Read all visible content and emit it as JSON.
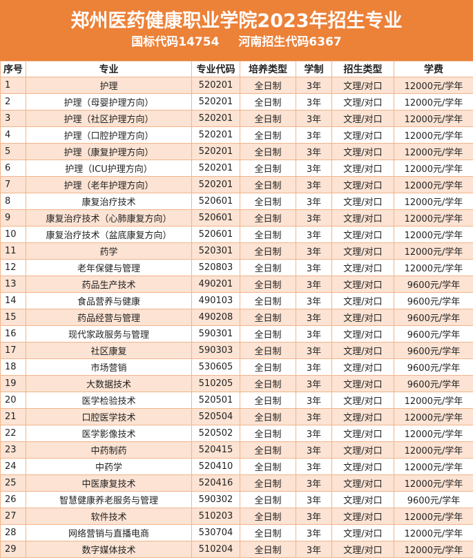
{
  "title": "郑州医药健康职业学院2023年招生专业",
  "codes": {
    "national": "国标代码14754",
    "henan": "河南招生代码6367"
  },
  "headers": [
    "序号",
    "专业",
    "专业代码",
    "培养类型",
    "学制",
    "招生类型",
    "学费"
  ],
  "rows": [
    [
      "1",
      "护理",
      "520201",
      "全日制",
      "3年",
      "文理/对口",
      "12000元/学年"
    ],
    [
      "2",
      "护理（母婴护理方向）",
      "520201",
      "全日制",
      "3年",
      "文理/对口",
      "12000元/学年"
    ],
    [
      "3",
      "护理（社区护理方向）",
      "520201",
      "全日制",
      "3年",
      "文理/对口",
      "12000元/学年"
    ],
    [
      "4",
      "护理（口腔护理方向）",
      "520201",
      "全日制",
      "3年",
      "文理/对口",
      "12000元/学年"
    ],
    [
      "5",
      "护理（康复护理方向）",
      "520201",
      "全日制",
      "3年",
      "文理/对口",
      "12000元/学年"
    ],
    [
      "6",
      "护理（ICU护理方向）",
      "520201",
      "全日制",
      "3年",
      "文理/对口",
      "12000元/学年"
    ],
    [
      "7",
      "护理（老年护理方向）",
      "520201",
      "全日制",
      "3年",
      "文理/对口",
      "12000元/学年"
    ],
    [
      "8",
      "康复治疗技术",
      "520601",
      "全日制",
      "3年",
      "文理/对口",
      "12000元/学年"
    ],
    [
      "9",
      "康复治疗技术（心肺康复方向）",
      "520601",
      "全日制",
      "3年",
      "文理/对口",
      "12000元/学年"
    ],
    [
      "10",
      "康复治疗技术（盆底康复方向）",
      "520601",
      "全日制",
      "3年",
      "文理/对口",
      "12000元/学年"
    ],
    [
      "11",
      "药学",
      "520301",
      "全日制",
      "3年",
      "文理/对口",
      "12000元/学年"
    ],
    [
      "12",
      "老年保健与管理",
      "520803",
      "全日制",
      "3年",
      "文理/对口",
      "12000元/学年"
    ],
    [
      "13",
      "药品生产技术",
      "490201",
      "全日制",
      "3年",
      "文理/对口",
      "9600元/学年"
    ],
    [
      "14",
      "食品营养与健康",
      "490103",
      "全日制",
      "3年",
      "文理/对口",
      "9600元/学年"
    ],
    [
      "15",
      "药品经营与管理",
      "490208",
      "全日制",
      "3年",
      "文理/对口",
      "9600元/学年"
    ],
    [
      "16",
      "现代家政服务与管理",
      "590301",
      "全日制",
      "3年",
      "文理/对口",
      "9600元/学年"
    ],
    [
      "17",
      "社区康复",
      "590303",
      "全日制",
      "3年",
      "文理/对口",
      "9600元/学年"
    ],
    [
      "18",
      "市场营销",
      "530605",
      "全日制",
      "3年",
      "文理/对口",
      "9600元/学年"
    ],
    [
      "19",
      "大数据技术",
      "510205",
      "全日制",
      "3年",
      "文理/对口",
      "9600元/学年"
    ],
    [
      "20",
      "医学检验技术",
      "520501",
      "全日制",
      "3年",
      "文理/对口",
      "12000元/学年"
    ],
    [
      "21",
      "口腔医学技术",
      "520504",
      "全日制",
      "3年",
      "文理/对口",
      "12000元/学年"
    ],
    [
      "22",
      "医学影像技术",
      "520502",
      "全日制",
      "3年",
      "文理/对口",
      "12000元/学年"
    ],
    [
      "23",
      "中药制药",
      "520415",
      "全日制",
      "3年",
      "文理/对口",
      "12000元/学年"
    ],
    [
      "24",
      "中药学",
      "520410",
      "全日制",
      "3年",
      "文理/对口",
      "12000元/学年"
    ],
    [
      "25",
      "中医康复技术",
      "520416",
      "全日制",
      "3年",
      "文理/对口",
      "12000元/学年"
    ],
    [
      "26",
      "智慧健康养老服务与管理",
      "590302",
      "全日制",
      "3年",
      "文理/对口",
      "9600元/学年"
    ],
    [
      "27",
      "软件技术",
      "510203",
      "全日制",
      "3年",
      "文理/对口",
      "12000元/学年"
    ],
    [
      "28",
      "网络营销与直播电商",
      "530704",
      "全日制",
      "3年",
      "文理/对口",
      "12000元/学年"
    ],
    [
      "29",
      "数字媒体技术",
      "510204",
      "全日制",
      "3年",
      "文理/对口",
      "12000元/学年"
    ]
  ],
  "colors": {
    "banner": "#EC8138",
    "stripe": "#FCE3D3",
    "border": "#F0B48A"
  }
}
